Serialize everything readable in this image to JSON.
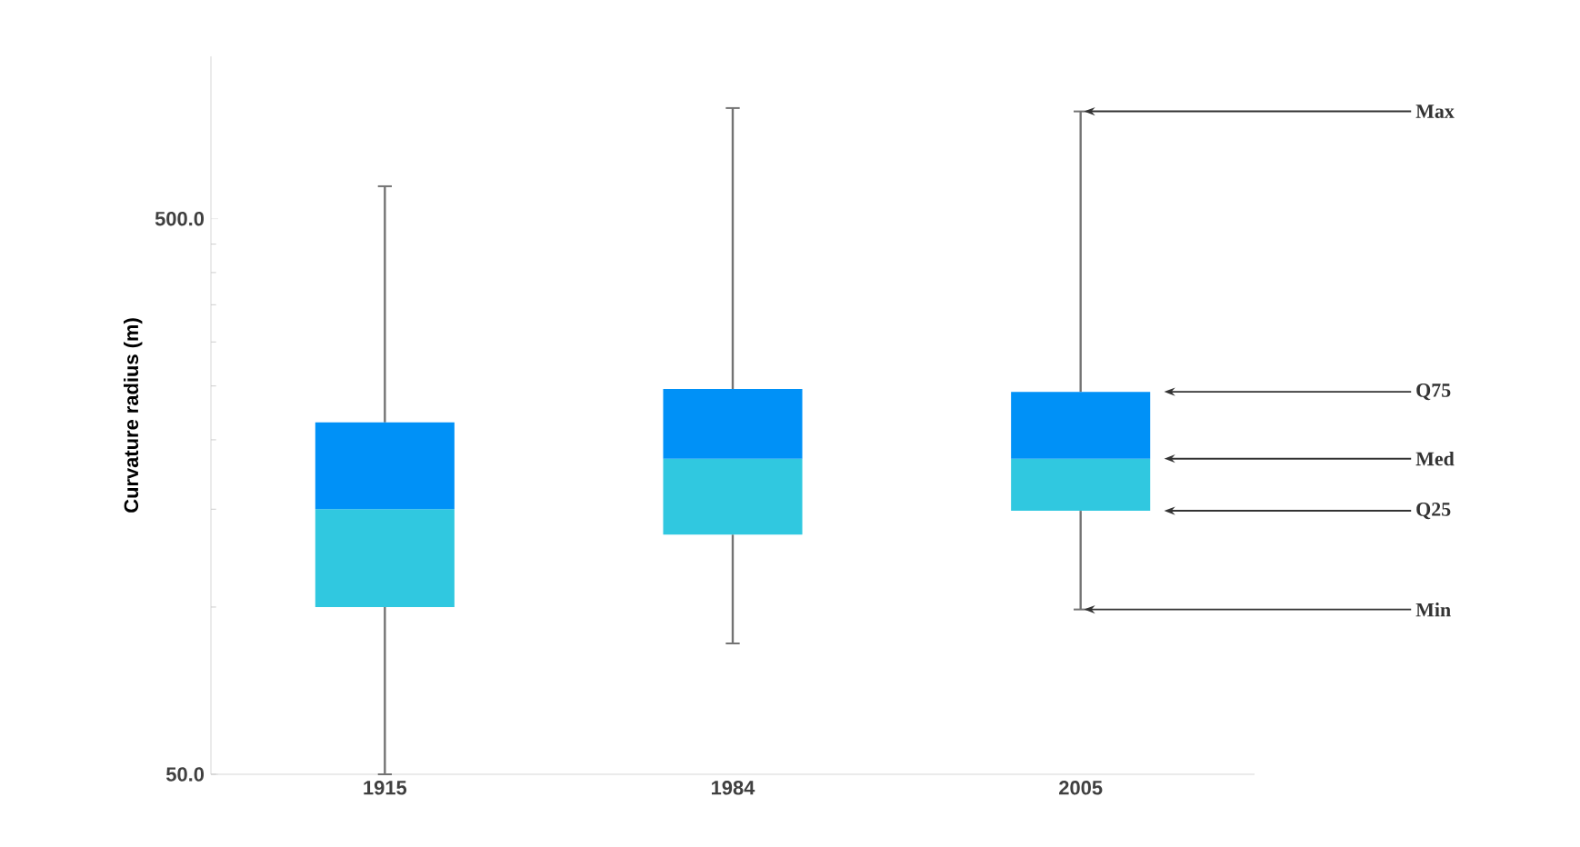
{
  "chart_data": {
    "type": "box",
    "ylabel": "Curvature radius (m)",
    "categories": [
      "1915",
      "1984",
      "2005"
    ],
    "boxes": [
      {
        "low": 50,
        "q1": 100,
        "median": 150,
        "q3": 215,
        "high": 572
      },
      {
        "low": 86,
        "q1": 135,
        "median": 185,
        "q3": 247,
        "high": 791
      },
      {
        "low": 99,
        "q1": 149,
        "median": 185,
        "q3": 244,
        "high": 780
      }
    ],
    "color": "#30c8e0",
    "log": "y",
    "ylim": [
      50,
      980
    ],
    "yticks": [
      {
        "value": 50,
        "label": "50.0"
      },
      {
        "value": 500,
        "label": "500.0"
      }
    ],
    "annotations": [
      {
        "text": "Max",
        "x": "2005",
        "y": 780
      },
      "Q75",
      "Med",
      "Q25",
      {
        "text": "Min",
        "x": "2005",
        "y": 99
      }
    ]
  }
}
